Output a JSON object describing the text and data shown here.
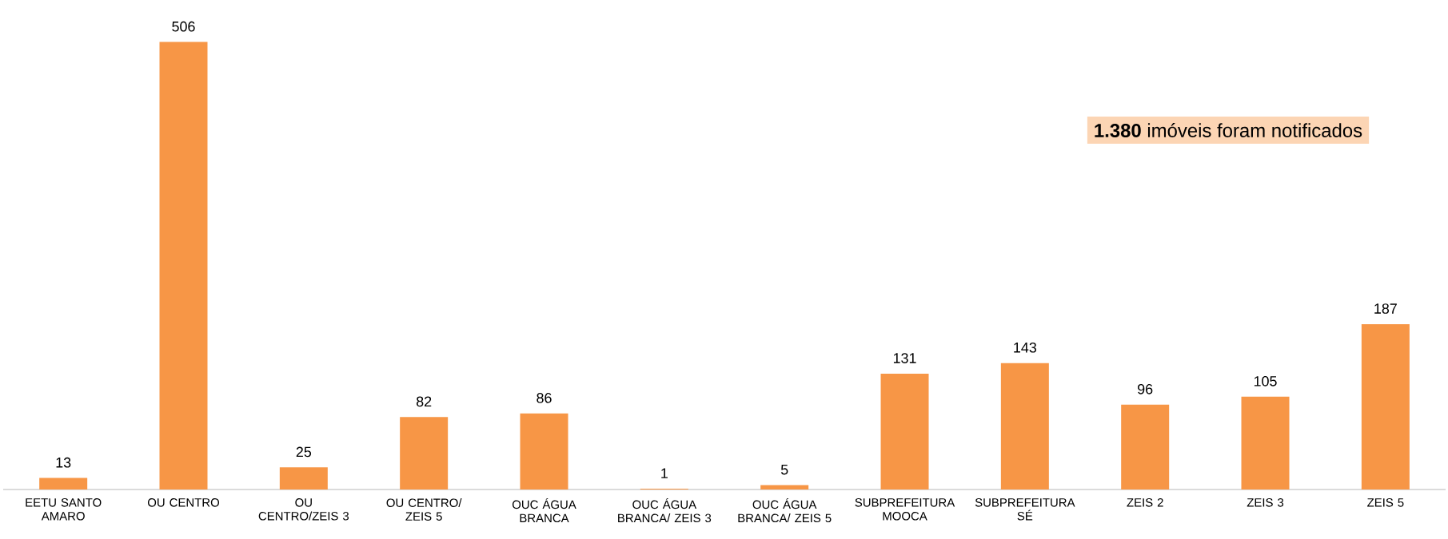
{
  "chart_data": {
    "type": "bar",
    "categories": [
      "EETU SANTO AMARO",
      "OU CENTRO",
      "OU CENTRO/ZEIS 3",
      "OU CENTRO/ ZEIS 5",
      "OUC ÁGUA BRANCA",
      "OUC ÁGUA BRANCA/ ZEIS 3",
      "OUC ÁGUA BRANCA/ ZEIS 5",
      "SUBPREFEITURA MOOCA",
      "SUBPREFEITURA SÉ",
      "ZEIS 2",
      "ZEIS 3",
      "ZEIS 5"
    ],
    "values": [
      13,
      506,
      25,
      82,
      86,
      1,
      5,
      131,
      143,
      96,
      105,
      187
    ],
    "color": "#f79646",
    "data_labels": true,
    "annotations": [
      "**1.380** imóveis foram notificados"
    ]
  }
}
